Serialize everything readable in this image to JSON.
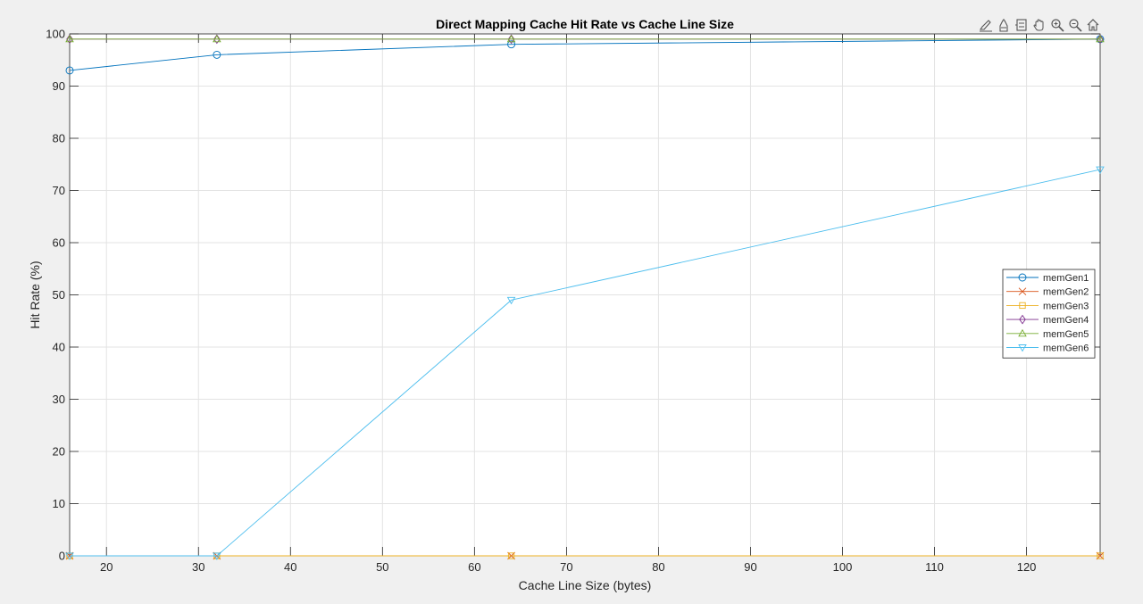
{
  "toolbar": {
    "icons": [
      "brush-icon",
      "data-tips-icon",
      "legend-icon",
      "pan-icon",
      "zoom-in-icon",
      "zoom-out-icon",
      "home-icon"
    ]
  },
  "chart_data": {
    "type": "line",
    "title": "Direct Mapping Cache Hit Rate vs Cache Line Size",
    "xlabel": "Cache Line Size (bytes)",
    "ylabel": "Hit Rate (%)",
    "xlim": [
      16,
      128
    ],
    "ylim": [
      0,
      100
    ],
    "xticks": [
      20,
      30,
      40,
      50,
      60,
      70,
      80,
      90,
      100,
      110,
      120
    ],
    "yticks": [
      0,
      10,
      20,
      30,
      40,
      50,
      60,
      70,
      80,
      90,
      100
    ],
    "grid": true,
    "legend_position": "right-middle",
    "x": [
      16,
      32,
      64,
      128
    ],
    "series": [
      {
        "name": "memGen1",
        "values": [
          93,
          96,
          98,
          99
        ],
        "color": "#0072BD",
        "marker": "circle"
      },
      {
        "name": "memGen2",
        "values": [
          0,
          0,
          0,
          0
        ],
        "color": "#D95319",
        "marker": "x"
      },
      {
        "name": "memGen3",
        "values": [
          0,
          0,
          0,
          0
        ],
        "color": "#EDB120",
        "marker": "square"
      },
      {
        "name": "memGen4",
        "values": [
          99,
          99,
          99,
          99
        ],
        "color": "#7E2F8E",
        "marker": "diamond"
      },
      {
        "name": "memGen5",
        "values": [
          99,
          99,
          99,
          99
        ],
        "color": "#77AC30",
        "marker": "triangle-up"
      },
      {
        "name": "memGen6",
        "values": [
          0,
          0,
          49,
          74
        ],
        "color": "#4DBEEE",
        "marker": "triangle-down"
      }
    ]
  }
}
